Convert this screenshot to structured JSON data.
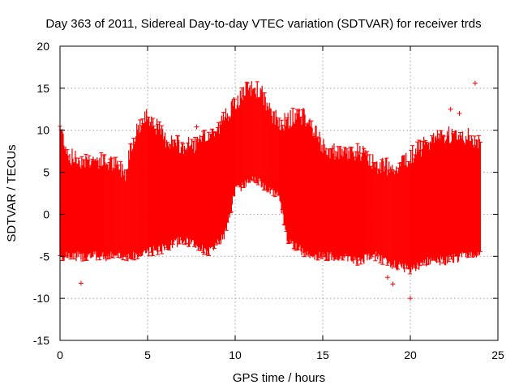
{
  "chart_data": {
    "type": "scatter",
    "title": "Day 363 of 2011, Sidereal Day-to-day VTEC variation (SDTVAR) for receiver trds",
    "xlabel": "GPS time / hours",
    "ylabel": "SDTVAR / TECUs",
    "xlim": [
      0,
      25
    ],
    "ylim": [
      -15,
      20
    ],
    "xticks": [
      0,
      5,
      10,
      15,
      20,
      25
    ],
    "yticks": [
      -15,
      -10,
      -5,
      0,
      5,
      10,
      15,
      20
    ],
    "grid": true,
    "marker": "+",
    "series_color": "#ff0000",
    "series": [
      {
        "name": "SDTVAR",
        "envelope": {
          "x": [
            0.0,
            0.5,
            1.0,
            2.0,
            3.0,
            3.8,
            4.0,
            4.5,
            4.8,
            5.0,
            6.0,
            7.0,
            8.0,
            8.5,
            9.0,
            9.5,
            10.0,
            10.5,
            11.0,
            11.5,
            12.0,
            12.5,
            13.0,
            13.5,
            14.0,
            14.5,
            15.0,
            16.0,
            17.0,
            18.0,
            19.0,
            20.0,
            21.0,
            22.0,
            23.0,
            24.0
          ],
          "upper": [
            10.5,
            7.0,
            6.5,
            6.5,
            6.0,
            5.0,
            8.0,
            10.5,
            11.0,
            12.0,
            9.0,
            8.0,
            8.5,
            9.5,
            10.0,
            12.0,
            13.0,
            14.5,
            15.0,
            14.5,
            12.0,
            11.0,
            11.0,
            12.0,
            11.5,
            10.0,
            8.0,
            7.0,
            7.5,
            6.0,
            5.5,
            7.0,
            8.5,
            9.5,
            9.5,
            8.5
          ],
          "lower": [
            -5.0,
            -5.0,
            -5.0,
            -5.0,
            -5.0,
            -5.0,
            -5.0,
            -5.0,
            -4.5,
            -4.5,
            -4.0,
            -3.0,
            -4.0,
            -4.5,
            -3.5,
            -2.0,
            3.0,
            3.5,
            4.5,
            3.5,
            3.0,
            2.0,
            -3.0,
            -4.0,
            -4.5,
            -5.0,
            -5.0,
            -5.0,
            -5.5,
            -5.0,
            -6.0,
            -6.5,
            -5.5,
            -5.5,
            -5.0,
            -5.0
          ]
        },
        "outliers": [
          {
            "x": 23.7,
            "y": 15.6
          },
          {
            "x": 22.3,
            "y": 12.5
          },
          {
            "x": 22.8,
            "y": 12.0
          },
          {
            "x": 7.8,
            "y": 10.4
          },
          {
            "x": 1.2,
            "y": -8.2
          },
          {
            "x": 20.0,
            "y": -10.0
          },
          {
            "x": 18.7,
            "y": -7.5
          },
          {
            "x": 19.0,
            "y": -8.3
          },
          {
            "x": 21.5,
            "y": 8.0
          }
        ]
      }
    ]
  }
}
